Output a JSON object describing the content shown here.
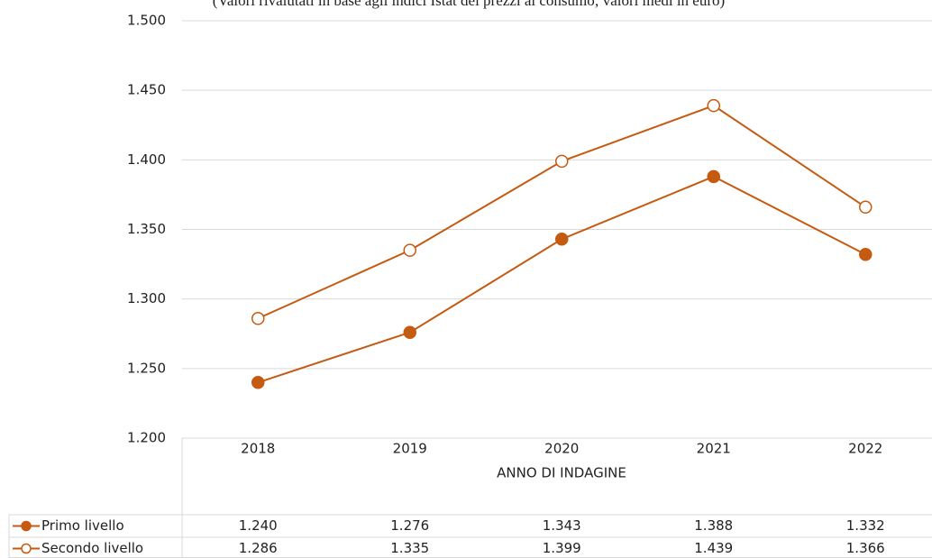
{
  "chart_data": {
    "type": "line",
    "subtitle": "(Valori rivalutati in base agli indici Istat dei prezzi al consumo; valori medi in euro)",
    "x_label": "ANNO DI INDAGINE",
    "categories": [
      "2018",
      "2019",
      "2020",
      "2021",
      "2022"
    ],
    "series": [
      {
        "name": "Primo livello",
        "color": "#c55a11",
        "marker": "filled",
        "values": [
          1240,
          1276,
          1343,
          1388,
          1332
        ],
        "value_labels": [
          "1.240",
          "1.276",
          "1.343",
          "1.388",
          "1.332"
        ]
      },
      {
        "name": "Secondo livello",
        "color": "#c55a11",
        "marker": "hollow",
        "values": [
          1286,
          1335,
          1399,
          1439,
          1366
        ],
        "value_labels": [
          "1.286",
          "1.335",
          "1.399",
          "1.439",
          "1.366"
        ]
      }
    ],
    "ylim": [
      1200,
      1500
    ],
    "yticks": [
      {
        "value": 1200,
        "label": "1.200"
      },
      {
        "value": 1250,
        "label": "1.250"
      },
      {
        "value": 1300,
        "label": "1.300"
      },
      {
        "value": 1350,
        "label": "1.350"
      },
      {
        "value": 1400,
        "label": "1.400"
      },
      {
        "value": 1450,
        "label": "1.450"
      },
      {
        "value": 1500,
        "label": "1.500"
      }
    ],
    "grid": true,
    "data_table": true
  }
}
